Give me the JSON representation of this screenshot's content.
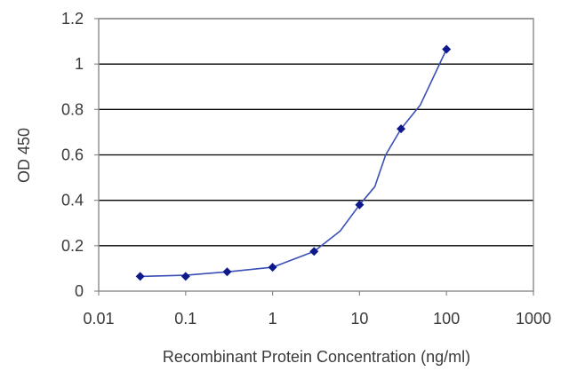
{
  "chart_data": {
    "type": "line",
    "title": "",
    "xlabel": "Recombinant Protein Concentration (ng/ml)",
    "ylabel": "OD 450",
    "x_scale": "log",
    "xlim": [
      0.01,
      1000
    ],
    "ylim": [
      0,
      1.2
    ],
    "x_ticks": [
      0.01,
      0.1,
      1,
      10,
      100,
      1000
    ],
    "x_tick_labels": [
      "0.01",
      "0.1",
      "1",
      "10",
      "100",
      "1000"
    ],
    "y_ticks": [
      0,
      0.2,
      0.4,
      0.6,
      0.8,
      1,
      1.2
    ],
    "y_tick_labels": [
      "0",
      "0.2",
      "0.4",
      "0.6",
      "0.8",
      "1",
      "1.2"
    ],
    "grid": "horizontal",
    "legend": "none",
    "series": [
      {
        "x": [
          0.03,
          0.1,
          0.3,
          1,
          3,
          10,
          30,
          100
        ],
        "y": [
          0.065,
          0.065,
          0.085,
          0.105,
          0.175,
          0.38,
          0.715,
          1.065
        ]
      }
    ],
    "curve": {
      "x": [
        0.03,
        0.1,
        0.3,
        1,
        3,
        6,
        10,
        15,
        20,
        30,
        50,
        100
      ],
      "y": [
        0.065,
        0.07,
        0.085,
        0.105,
        0.175,
        0.265,
        0.38,
        0.46,
        0.6,
        0.715,
        0.82,
        1.065
      ]
    },
    "colors": {
      "line": "#3a4fb8",
      "marker": "#0e1a8c",
      "grid": "#000000",
      "frame": "#8a8a8a",
      "text": "#3a3a3a"
    }
  }
}
